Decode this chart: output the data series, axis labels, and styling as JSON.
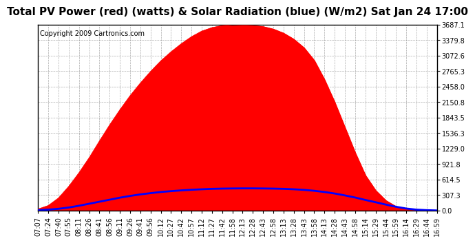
{
  "title": "Total PV Power (red) (watts) & Solar Radiation (blue) (W/m2) Sat Jan 24 17:00",
  "copyright": "Copyright 2009 Cartronics.com",
  "bg_color": "#ffffff",
  "plot_bg_color": "#ffffff",
  "yticks": [
    0.0,
    307.3,
    614.5,
    921.8,
    1229.0,
    1536.3,
    1843.5,
    2150.8,
    2458.0,
    2765.3,
    3072.6,
    3379.8,
    3687.1
  ],
  "ymax": 3687.1,
  "ymin": 0.0,
  "x_labels": [
    "07:07",
    "07:24",
    "07:40",
    "07:55",
    "08:11",
    "08:26",
    "08:41",
    "08:56",
    "09:11",
    "09:26",
    "09:41",
    "09:56",
    "10:12",
    "10:27",
    "10:42",
    "10:57",
    "11:12",
    "11:27",
    "11:42",
    "11:58",
    "12:13",
    "12:28",
    "12:43",
    "12:58",
    "13:13",
    "13:28",
    "13:43",
    "13:58",
    "14:13",
    "14:28",
    "14:43",
    "14:58",
    "15:14",
    "15:29",
    "15:44",
    "15:59",
    "16:14",
    "16:29",
    "16:44",
    "16:59"
  ],
  "pv_power": [
    30,
    100,
    250,
    480,
    750,
    1050,
    1380,
    1700,
    2000,
    2280,
    2530,
    2760,
    2970,
    3150,
    3310,
    3450,
    3560,
    3630,
    3670,
    3687,
    3680,
    3670,
    3650,
    3600,
    3520,
    3400,
    3230,
    2980,
    2600,
    2150,
    1650,
    1150,
    700,
    400,
    200,
    80,
    25,
    8,
    2,
    0
  ],
  "solar_rad": [
    8,
    18,
    35,
    60,
    95,
    135,
    175,
    215,
    255,
    290,
    320,
    345,
    368,
    385,
    400,
    412,
    422,
    430,
    435,
    438,
    440,
    440,
    438,
    435,
    430,
    422,
    410,
    392,
    368,
    338,
    300,
    258,
    210,
    165,
    118,
    75,
    40,
    18,
    8,
    2
  ],
  "pv_color": "#ff0000",
  "solar_color": "#0000ff",
  "grid_color": "#888888",
  "title_fontsize": 11,
  "tick_fontsize": 7,
  "copyright_fontsize": 7
}
